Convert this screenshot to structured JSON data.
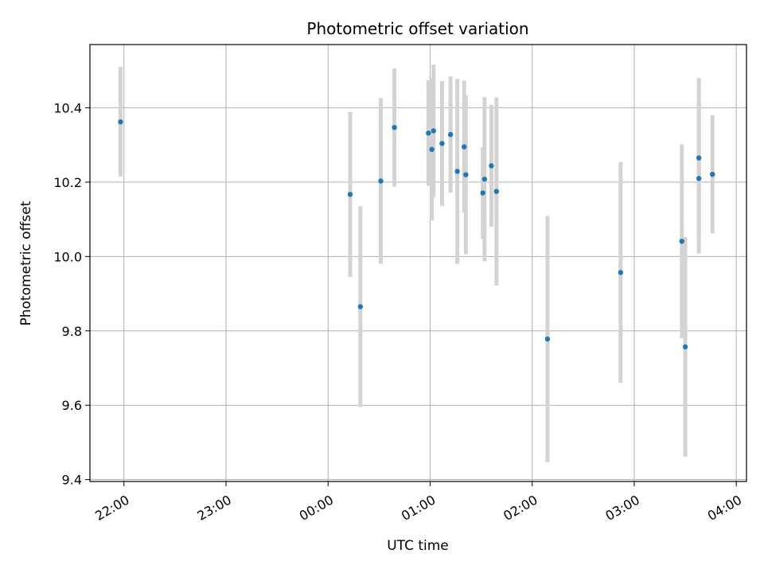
{
  "chart_data": {
    "type": "scatter",
    "title": "Photometric offset variation",
    "xlabel": "UTC time",
    "ylabel": "Photometric offset",
    "x_unit": "UTC time of day (HH:MM), spanning midnight",
    "xlim": [
      "21:40",
      "04:06"
    ],
    "ylim": [
      9.395,
      10.57
    ],
    "grid": true,
    "x_ticks": [
      "22:00",
      "23:00",
      "00:00",
      "01:00",
      "02:00",
      "03:00",
      "04:00"
    ],
    "y_ticks": [
      9.4,
      9.6,
      9.8,
      10.0,
      10.2,
      10.4
    ],
    "y_tick_labels": [
      "9.4",
      "9.6",
      "9.8",
      "10.0",
      "10.2",
      "10.4"
    ],
    "point_color": "#1f77b4",
    "errorbar_color": "#d3d3d3",
    "series": [
      {
        "points": [
          {
            "x": "21:58",
            "y": 10.362,
            "lo": 10.215,
            "hi": 10.51
          },
          {
            "x": "00:13",
            "y": 10.167,
            "lo": 9.945,
            "hi": 10.389
          },
          {
            "x": "00:19",
            "y": 9.865,
            "lo": 9.595,
            "hi": 10.135
          },
          {
            "x": "00:31",
            "y": 10.203,
            "lo": 9.98,
            "hi": 10.426
          },
          {
            "x": "00:39",
            "y": 10.347,
            "lo": 10.188,
            "hi": 10.506
          },
          {
            "x": "00:59",
            "y": 10.332,
            "lo": 10.19,
            "hi": 10.474
          },
          {
            "x": "01:01",
            "y": 10.288,
            "lo": 10.097,
            "hi": 10.479
          },
          {
            "x": "01:02",
            "y": 10.338,
            "lo": 10.16,
            "hi": 10.516
          },
          {
            "x": "01:07",
            "y": 10.304,
            "lo": 10.136,
            "hi": 10.472
          },
          {
            "x": "01:12",
            "y": 10.328,
            "lo": 10.172,
            "hi": 10.484
          },
          {
            "x": "01:16",
            "y": 10.229,
            "lo": 9.98,
            "hi": 10.478
          },
          {
            "x": "01:20",
            "y": 10.295,
            "lo": 10.118,
            "hi": 10.473
          },
          {
            "x": "01:21",
            "y": 10.22,
            "lo": 10.006,
            "hi": 10.434
          },
          {
            "x": "01:31",
            "y": 10.171,
            "lo": 10.048,
            "hi": 10.294
          },
          {
            "x": "01:32",
            "y": 10.208,
            "lo": 9.987,
            "hi": 10.429
          },
          {
            "x": "01:36",
            "y": 10.244,
            "lo": 10.08,
            "hi": 10.408
          },
          {
            "x": "01:39",
            "y": 10.175,
            "lo": 9.922,
            "hi": 10.428
          },
          {
            "x": "02:09",
            "y": 9.778,
            "lo": 9.447,
            "hi": 10.109
          },
          {
            "x": "02:52",
            "y": 9.957,
            "lo": 9.66,
            "hi": 10.254
          },
          {
            "x": "03:28",
            "y": 10.041,
            "lo": 9.78,
            "hi": 10.302
          },
          {
            "x": "03:30",
            "y": 9.757,
            "lo": 9.462,
            "hi": 10.052
          },
          {
            "x": "03:38",
            "y": 10.265,
            "lo": 10.05,
            "hi": 10.48
          },
          {
            "x": "03:38",
            "y": 10.21,
            "lo": 10.008,
            "hi": 10.412
          },
          {
            "x": "03:46",
            "y": 10.221,
            "lo": 10.062,
            "hi": 10.38
          }
        ]
      }
    ]
  }
}
